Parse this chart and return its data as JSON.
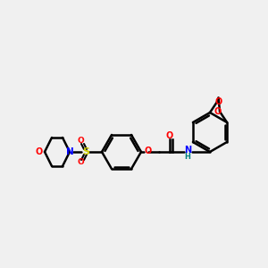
{
  "bg_color": "#f0f0f0",
  "line_color": "#000000",
  "bond_width": 1.8,
  "figsize": [
    3.0,
    3.0
  ],
  "dpi": 100,
  "atom_colors": {
    "O": "#ff0000",
    "N_amide": "#0000ff",
    "H": "#008080",
    "S": "#cccc00",
    "N_morph": "#0000ff",
    "O_morph": "#ff0000"
  }
}
